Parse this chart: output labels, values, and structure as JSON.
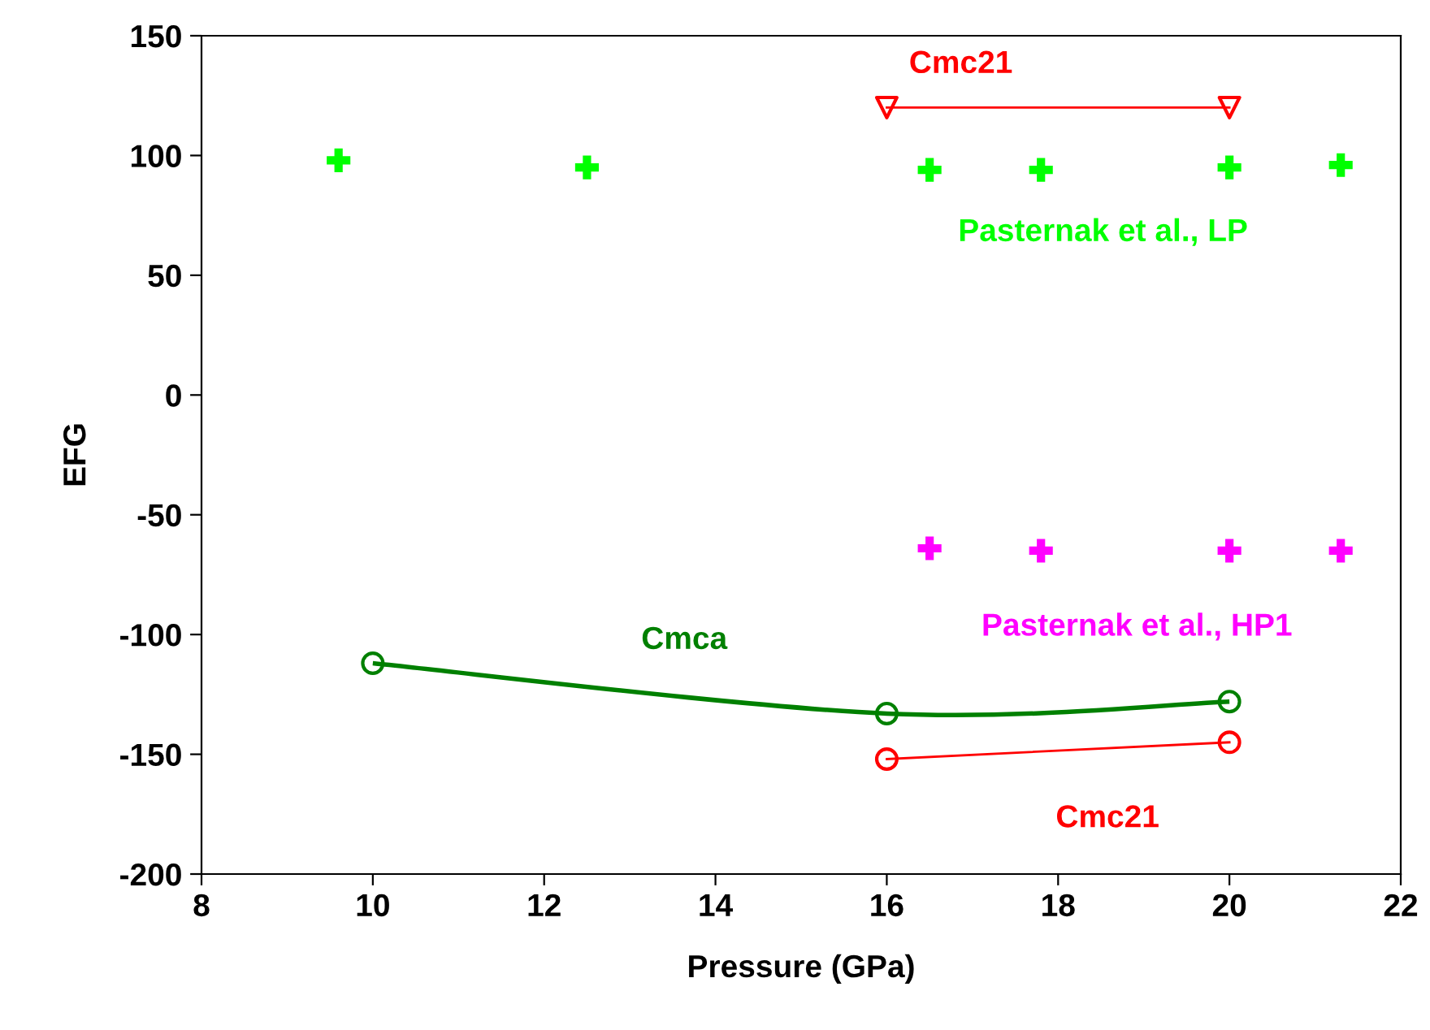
{
  "chart_data": {
    "type": "scatter",
    "xlabel": "Pressure (GPa)",
    "ylabel": "EFG",
    "xlim": [
      8,
      22
    ],
    "xticks": [
      8,
      10,
      12,
      14,
      16,
      18,
      20,
      22
    ],
    "ylim": [
      -200,
      150
    ],
    "yticks": [
      -200,
      -150,
      -100,
      -50,
      0,
      50,
      100,
      150
    ],
    "grid": false,
    "legend": false,
    "series": [
      {
        "name": "Cmc21",
        "type": "line",
        "color": "#ff0000",
        "marker": "triangle",
        "x": [
          16,
          20
        ],
        "values": [
          120,
          120
        ]
      },
      {
        "name": "Pasternak et al., LP",
        "color": "#00ff00",
        "marker": "cross",
        "x": [
          9.6,
          12.5,
          16.5,
          17.8,
          20,
          21.3
        ],
        "values": [
          98,
          95,
          94,
          94,
          95,
          96
        ]
      },
      {
        "name": "Pasternak et al., HP1",
        "color": "#ff00ff",
        "marker": "cross",
        "x": [
          16.5,
          17.8,
          20,
          21.3
        ],
        "values": [
          -64,
          -65,
          -65,
          -65
        ]
      },
      {
        "name": "Cmca",
        "type": "line",
        "color": "#008000",
        "marker": "circle",
        "x": [
          10,
          16,
          20
        ],
        "values": [
          -112,
          -133,
          -128
        ]
      },
      {
        "name": "Cmc21",
        "type": "line",
        "color": "#ff0000",
        "marker": "circle",
        "x": [
          16,
          20
        ],
        "values": [
          -152,
          -145
        ]
      }
    ]
  }
}
